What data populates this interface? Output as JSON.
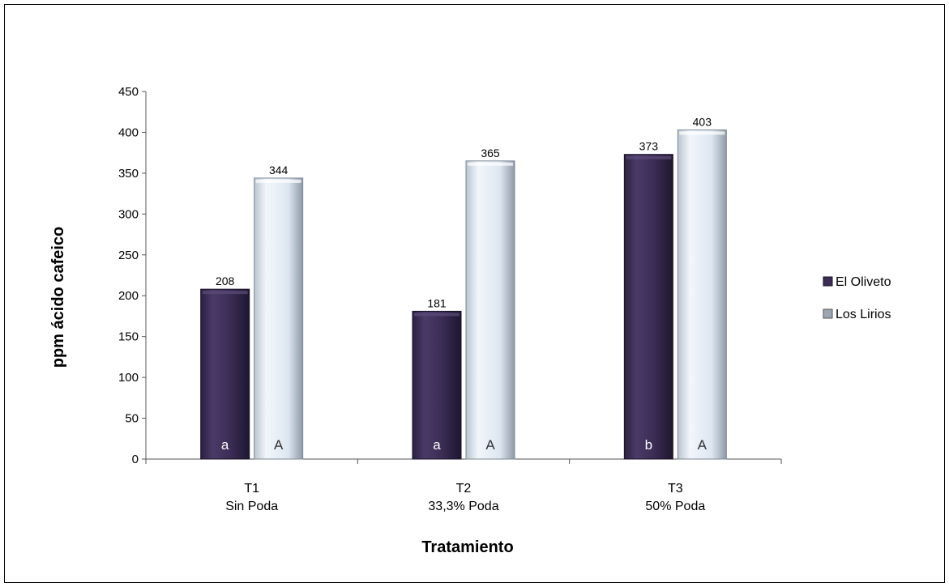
{
  "chart_data": {
    "type": "bar",
    "title": "",
    "xlabel": "Tratamiento",
    "ylabel": "ppm ácido cafeico",
    "ylim": [
      0,
      450
    ],
    "yticks": [
      0,
      50,
      100,
      150,
      200,
      250,
      300,
      350,
      400,
      450
    ],
    "ytick_labels": [
      "0",
      "50",
      "100",
      "150",
      "200",
      "250",
      "300",
      "350",
      "400",
      "450"
    ],
    "categories": [
      {
        "code": "T1",
        "desc": "Sin Poda"
      },
      {
        "code": "T2",
        "desc": "33,3% Poda"
      },
      {
        "code": "T3",
        "desc": "50% Poda"
      }
    ],
    "series": [
      {
        "name": "El Oliveto",
        "color": "#3b2d55",
        "values": [
          208,
          181,
          373
        ],
        "letters": [
          "a",
          "a",
          "b"
        ]
      },
      {
        "name": "Los Lirios",
        "color": "#dfe8f2",
        "values": [
          344,
          365,
          403
        ],
        "letters": [
          "A",
          "A",
          "A"
        ]
      }
    ],
    "legend": "right",
    "grid": false
  }
}
